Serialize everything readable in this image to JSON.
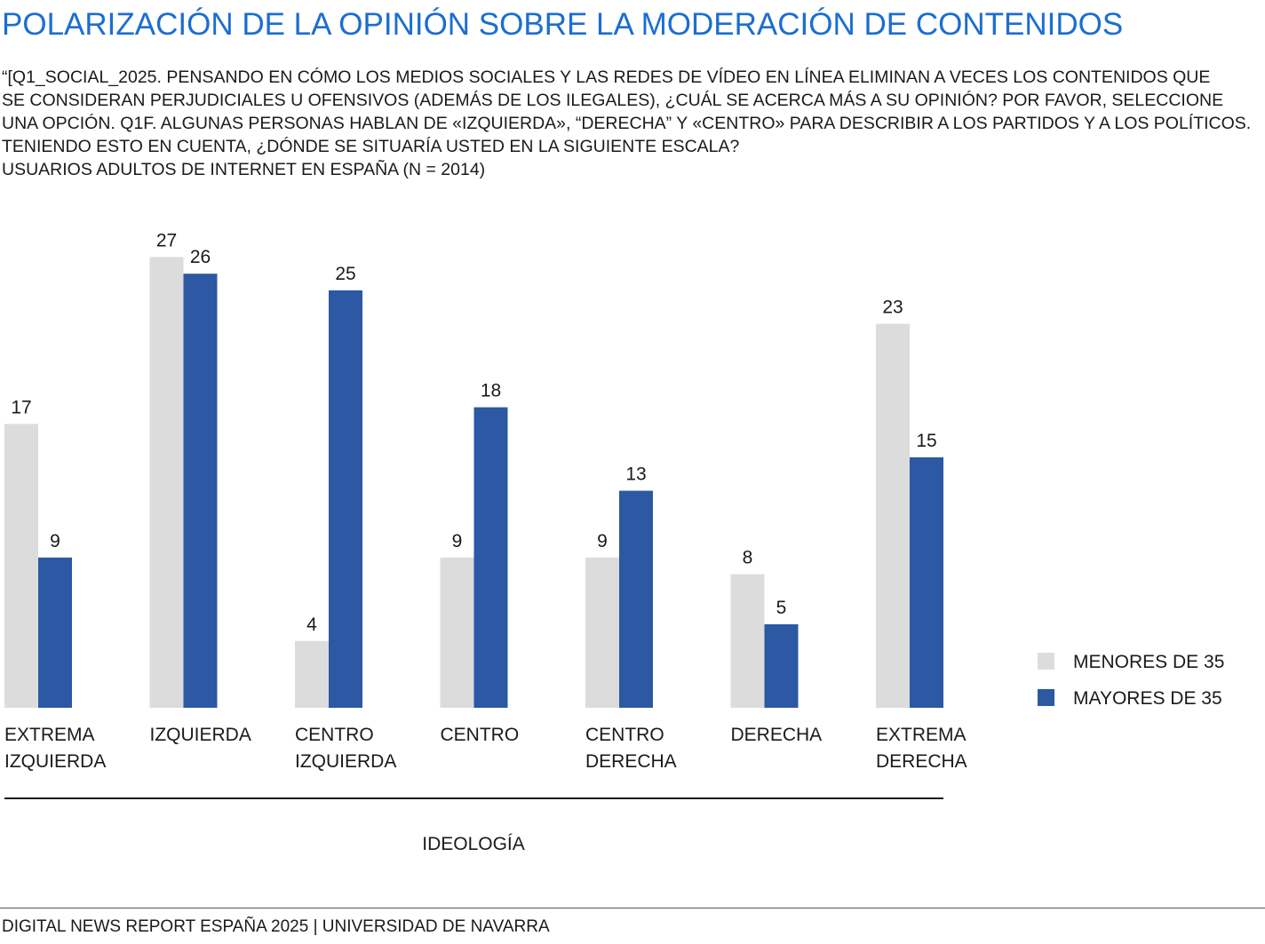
{
  "title": "POLARIZACIÓN DE LA OPINIÓN SOBRE LA MODERACIÓN DE CONTENIDOS",
  "subtitle_lines": [
    "“[Q1_SOCIAL_2025. PENSANDO EN CÓMO LOS MEDIOS SOCIALES Y LAS REDES DE VÍDEO EN LÍNEA ELIMINAN A VECES LOS CONTENIDOS QUE",
    "SE CONSIDERAN PERJUDICIALES U OFENSIVOS (ADEMÁS DE LOS ILEGALES), ¿CUÁL SE ACERCA MÁS A SU OPINIÓN? POR FAVOR, SELECCIONE",
    "UNA OPCIÓN. Q1F. ALGUNAS PERSONAS HABLAN DE «IZQUIERDA», “DERECHA” Y «CENTRO» PARA DESCRIBIR A LOS PARTIDOS Y A LOS POLÍTICOS.",
    "TENIENDO ESTO EN CUENTA, ¿DÓNDE SE SITUARÍA USTED EN LA SIGUIENTE ESCALA?",
    "USUARIOS ADULTOS DE INTERNET EN ESPAÑA (N = 2014)"
  ],
  "footer": "DIGITAL NEWS REPORT ESPAÑA 2025 | UNIVERSIDAD DE NAVARRA",
  "chart_data": {
    "type": "bar",
    "categories": [
      [
        "EXTREMA",
        "IZQUIERDA"
      ],
      [
        "IZQUIERDA"
      ],
      [
        "CENTRO",
        "IZQUIERDA"
      ],
      [
        "CENTRO"
      ],
      [
        "CENTRO",
        "DERECHA"
      ],
      [
        "DERECHA"
      ],
      [
        "EXTREMA",
        "DERECHA"
      ]
    ],
    "series": [
      {
        "name": "MENORES DE 35",
        "color": "#dcdcdc",
        "values": [
          17,
          27,
          4,
          9,
          9,
          8,
          23
        ]
      },
      {
        "name": "MAYORES DE 35",
        "color": "#2c58a4",
        "values": [
          9,
          26,
          25,
          18,
          13,
          5,
          15
        ]
      }
    ],
    "xlabel": "IDEOLOGÍA",
    "ylabel": "",
    "ylim": [
      0,
      28
    ],
    "grid": false,
    "legend": "right"
  }
}
